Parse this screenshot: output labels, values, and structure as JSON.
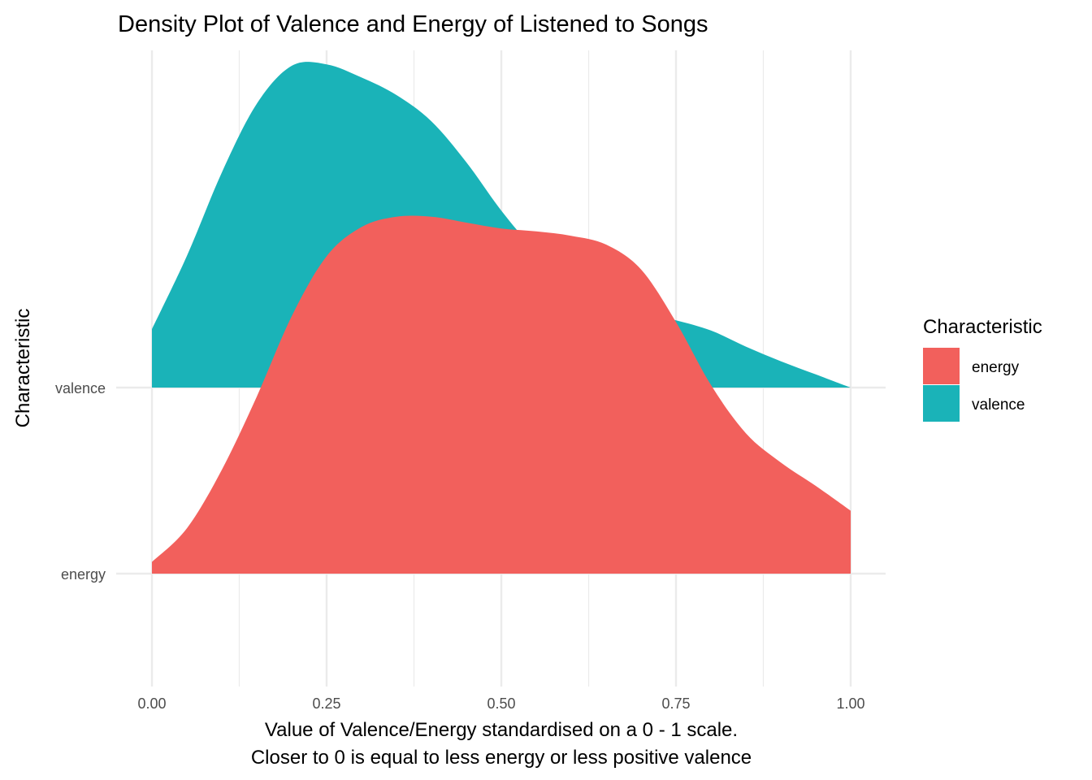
{
  "chart_data": {
    "type": "ridgeline-density",
    "title": "Density Plot of Valence and Energy of Listened to Songs",
    "xlabel": "Value of Valence/Energy standardised on a 0 - 1 scale.",
    "xlabel_line2": "Closer to 0 is equal to less energy or less positive valence",
    "ylabel": "Characteristic",
    "xlim": [
      0,
      1
    ],
    "x_ticks": [
      "0.00",
      "0.25",
      "0.50",
      "0.75",
      "1.00"
    ],
    "y_categories": [
      "energy",
      "valence"
    ],
    "grid": true,
    "legend": {
      "title": "Characteristic",
      "placement": "right",
      "entries": [
        "energy",
        "valence"
      ]
    },
    "series": [
      {
        "name": "valence",
        "color": "#1AB3B8",
        "x": [
          0.0,
          0.05,
          0.1,
          0.15,
          0.2,
          0.25,
          0.3,
          0.35,
          0.4,
          0.45,
          0.5,
          0.55,
          0.6,
          0.65,
          0.7,
          0.75,
          0.8,
          0.85,
          0.9,
          0.95,
          1.0
        ],
        "density": [
          0.4,
          0.9,
          1.47,
          1.94,
          2.2,
          2.21,
          2.12,
          2.0,
          1.82,
          1.54,
          1.21,
          0.93,
          0.72,
          0.58,
          0.51,
          0.46,
          0.39,
          0.28,
          0.18,
          0.09,
          0.0
        ]
      },
      {
        "name": "energy",
        "color": "#F2605C",
        "x": [
          0.0,
          0.05,
          0.1,
          0.15,
          0.2,
          0.25,
          0.3,
          0.35,
          0.4,
          0.45,
          0.5,
          0.55,
          0.6,
          0.65,
          0.7,
          0.75,
          0.8,
          0.85,
          0.9,
          0.95,
          1.0
        ],
        "density": [
          0.08,
          0.31,
          0.71,
          1.21,
          1.76,
          2.17,
          2.37,
          2.44,
          2.44,
          2.4,
          2.36,
          2.34,
          2.31,
          2.25,
          2.08,
          1.72,
          1.29,
          0.96,
          0.76,
          0.6,
          0.43
        ]
      }
    ]
  }
}
